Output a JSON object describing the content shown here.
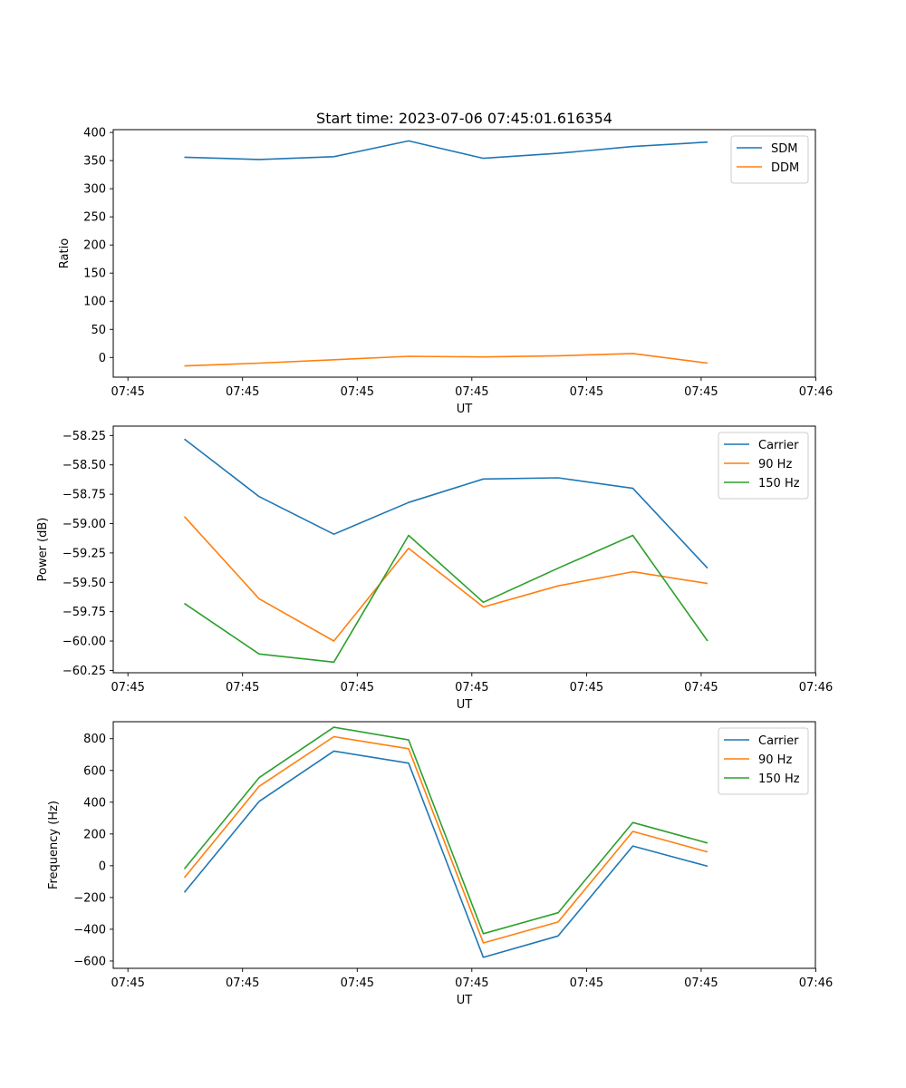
{
  "chart_data": [
    {
      "type": "line",
      "title": "Start time: 2023-07-06 07:45:01.616354",
      "xlabel": "UT",
      "ylabel": "Ratio",
      "x_tick_labels": [
        "07:45",
        "07:45",
        "07:45",
        "07:45",
        "07:45",
        "07:45",
        "07:46"
      ],
      "y_ticks": [
        0,
        50,
        100,
        150,
        200,
        250,
        300,
        350,
        400
      ],
      "ylim": [
        -35,
        405
      ],
      "grid": false,
      "legend": "top-right",
      "series": [
        {
          "name": "SDM",
          "color": "#1f77b4",
          "values": [
            356,
            352,
            357,
            385,
            354,
            363,
            375,
            383
          ]
        },
        {
          "name": "DDM",
          "color": "#ff7f0e",
          "values": [
            -15,
            -10,
            -4,
            2,
            1,
            3,
            7,
            -10
          ]
        }
      ]
    },
    {
      "type": "line",
      "title": "",
      "xlabel": "UT",
      "ylabel": "Power (dB)",
      "x_tick_labels": [
        "07:45",
        "07:45",
        "07:45",
        "07:45",
        "07:45",
        "07:45",
        "07:46"
      ],
      "y_ticks": [
        -60.25,
        -60.0,
        -59.75,
        -59.5,
        -59.25,
        -59.0,
        -58.75,
        -58.5,
        -58.25
      ],
      "y_tick_labels": [
        "−60.25",
        "−60.00",
        "−59.75",
        "−59.50",
        "−59.25",
        "−59.00",
        "−58.75",
        "−58.50",
        "−58.25"
      ],
      "ylim": [
        -60.27,
        -58.17
      ],
      "grid": false,
      "legend": "top-right",
      "series": [
        {
          "name": "Carrier",
          "color": "#1f77b4",
          "values": [
            -58.28,
            -58.77,
            -59.09,
            -58.82,
            -58.62,
            -58.61,
            -58.7,
            -59.38
          ]
        },
        {
          "name": "90 Hz",
          "color": "#ff7f0e",
          "values": [
            -58.94,
            -59.64,
            -60.0,
            -59.21,
            -59.71,
            -59.53,
            -59.41,
            -59.51
          ]
        },
        {
          "name": "150 Hz",
          "color": "#2ca02c",
          "values": [
            -59.68,
            -60.11,
            -60.18,
            -59.1,
            -59.67,
            -59.38,
            -59.1,
            -60.0
          ]
        }
      ]
    },
    {
      "type": "line",
      "title": "",
      "xlabel": "UT",
      "ylabel": "Frequency (Hz)",
      "x_tick_labels": [
        "07:45",
        "07:45",
        "07:45",
        "07:45",
        "07:45",
        "07:45",
        "07:46"
      ],
      "y_ticks": [
        -600,
        -400,
        -200,
        0,
        200,
        400,
        600,
        800
      ],
      "y_tick_labels": [
        "−600",
        "−400",
        "−200",
        "0",
        "200",
        "400",
        "600",
        "800"
      ],
      "ylim": [
        -646,
        907
      ],
      "grid": false,
      "legend": "top-right",
      "series": [
        {
          "name": "Carrier",
          "color": "#1f77b4",
          "values": [
            -168,
            405,
            722,
            646,
            -577,
            -442,
            124,
            -3
          ]
        },
        {
          "name": "90 Hz",
          "color": "#ff7f0e",
          "values": [
            -75,
            500,
            813,
            737,
            -486,
            -354,
            216,
            87
          ]
        },
        {
          "name": "150 Hz",
          "color": "#2ca02c",
          "values": [
            -20,
            555,
            872,
            792,
            -428,
            -296,
            272,
            143
          ]
        }
      ]
    }
  ]
}
